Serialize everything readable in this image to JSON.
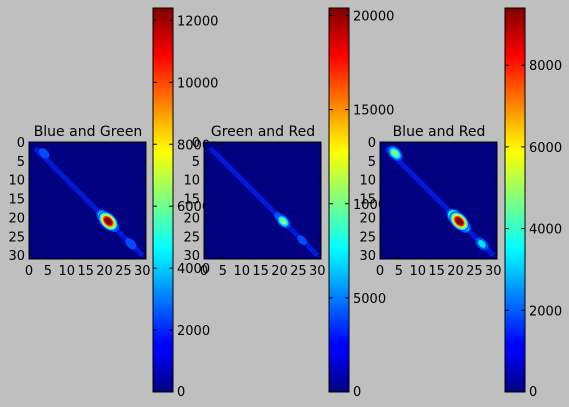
{
  "chart_data": [
    {
      "type": "heatmap",
      "title": "Blue and Green",
      "xticks": [
        "0",
        "5",
        "10",
        "15",
        "20",
        "25",
        "30"
      ],
      "yticks": [
        "0",
        "5",
        "10",
        "15",
        "20",
        "25",
        "30"
      ],
      "x_range": [
        0,
        31
      ],
      "y_range": [
        0,
        31
      ],
      "y_inverted": true,
      "colormap": "jet",
      "colorbar": {
        "range": [
          0,
          12400
        ],
        "ticks": [
          0,
          2000,
          4000,
          6000,
          8000,
          10000,
          12000
        ],
        "tick_labels": [
          "0",
          "2000",
          "4000",
          "6000",
          "8000",
          "10000",
          "12000"
        ]
      },
      "blobs": [
        {
          "x": 21,
          "y": 21,
          "value": 12400
        },
        {
          "x": 20,
          "y": 20,
          "value": 9000
        },
        {
          "x": 22,
          "y": 22,
          "value": 7000
        },
        {
          "x": 4,
          "y": 3,
          "value": 3500
        },
        {
          "x": 27,
          "y": 27,
          "value": 4200
        }
      ]
    },
    {
      "type": "heatmap",
      "title": "Green and Red",
      "xticks": [
        "0",
        "5",
        "10",
        "15",
        "20",
        "25",
        "30"
      ],
      "yticks": [
        "0",
        "5",
        "10",
        "15",
        "20",
        "25",
        "30"
      ],
      "x_range": [
        0,
        31
      ],
      "y_range": [
        0,
        31
      ],
      "y_inverted": true,
      "colormap": "jet",
      "colorbar": {
        "range": [
          0,
          20400
        ],
        "ticks": [
          0,
          5000,
          10000,
          15000,
          20000
        ],
        "tick_labels": [
          "0",
          "5000",
          "10000",
          "15000",
          "20000"
        ]
      },
      "blobs": [
        {
          "x": 21,
          "y": 21,
          "value": 11000
        },
        {
          "x": 20,
          "y": 20,
          "value": 6000
        },
        {
          "x": 4,
          "y": 3,
          "value": 2000
        },
        {
          "x": 26,
          "y": 26,
          "value": 4500
        }
      ]
    },
    {
      "type": "heatmap",
      "title": "Blue and Red",
      "xticks": [
        "0",
        "5",
        "10",
        "15",
        "20",
        "25",
        "30"
      ],
      "yticks": [
        "0",
        "5",
        "10",
        "15",
        "20",
        "25",
        "30"
      ],
      "x_range": [
        0,
        31
      ],
      "y_range": [
        0,
        31
      ],
      "y_inverted": true,
      "colormap": "jet",
      "colorbar": {
        "range": [
          0,
          9400
        ],
        "ticks": [
          0,
          2000,
          4000,
          6000,
          8000
        ],
        "tick_labels": [
          "0",
          "2000",
          "4000",
          "6000",
          "8000"
        ]
      },
      "blobs": [
        {
          "x": 21,
          "y": 21,
          "value": 9400
        },
        {
          "x": 20,
          "y": 20,
          "value": 8000
        },
        {
          "x": 22,
          "y": 22,
          "value": 6500
        },
        {
          "x": 4,
          "y": 3,
          "value": 6000
        },
        {
          "x": 27,
          "y": 27,
          "value": 4500
        }
      ]
    }
  ]
}
